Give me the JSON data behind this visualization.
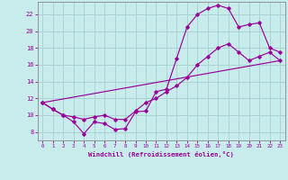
{
  "xlabel": "Windchill (Refroidissement éolien,°C)",
  "bg_color": "#c8ecec",
  "grid_color": "#aad4d4",
  "line_color": "#990099",
  "xlim": [
    -0.5,
    23.5
  ],
  "ylim": [
    7.0,
    23.5
  ],
  "xticks": [
    0,
    1,
    2,
    3,
    4,
    5,
    6,
    7,
    8,
    9,
    10,
    11,
    12,
    13,
    14,
    15,
    16,
    17,
    18,
    19,
    20,
    21,
    22,
    23
  ],
  "yticks": [
    8,
    10,
    12,
    14,
    16,
    18,
    20,
    22
  ],
  "line1_x": [
    0,
    1,
    2,
    3,
    4,
    5,
    6,
    7,
    8,
    9,
    10,
    11,
    12,
    13,
    14,
    15,
    16,
    17,
    18,
    19,
    20,
    21,
    22,
    23
  ],
  "line1_y": [
    11.5,
    10.7,
    10.0,
    9.2,
    7.8,
    9.2,
    9.0,
    8.3,
    8.4,
    10.4,
    10.5,
    12.8,
    13.1,
    16.8,
    20.5,
    22.0,
    22.7,
    23.1,
    22.7,
    20.5,
    20.8,
    21.0,
    18.0,
    17.5
  ],
  "line2_x": [
    0,
    1,
    2,
    3,
    4,
    5,
    6,
    7,
    8,
    9,
    10,
    11,
    12,
    13,
    14,
    15,
    16,
    17,
    18,
    19,
    20,
    21,
    22,
    23
  ],
  "line2_y": [
    11.5,
    10.7,
    10.0,
    9.8,
    9.5,
    9.8,
    10.0,
    9.5,
    9.5,
    10.5,
    11.5,
    12.0,
    12.8,
    13.5,
    14.5,
    16.0,
    17.0,
    18.0,
    18.5,
    17.5,
    16.5,
    17.0,
    17.5,
    16.5
  ],
  "line3_x": [
    0,
    23
  ],
  "line3_y": [
    11.5,
    16.5
  ]
}
